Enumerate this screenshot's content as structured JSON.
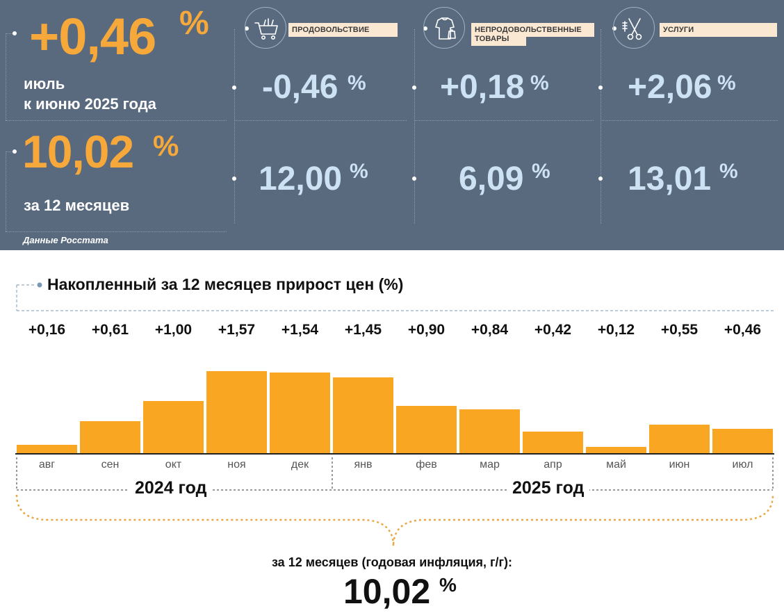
{
  "headline": {
    "monthly_value": "+0,46",
    "monthly_pct": "%",
    "monthly_line1": "июль",
    "monthly_line2": "к июню 2025 года",
    "annual_value": "10,02",
    "annual_pct": "%",
    "annual_caption": "за 12 месяцев",
    "source": "Данные Росстата"
  },
  "categories": [
    {
      "name": "ПРОДОВОЛЬСТВИЕ",
      "name_line2": "",
      "icon": "shopping-cart-icon",
      "monthly": "-0,46",
      "annual": "12,00",
      "pct": "%"
    },
    {
      "name": "НЕПРОДОВОЛЬСТВЕННЫЕ",
      "name_line2": "ТОВАРЫ",
      "icon": "clothes-icon",
      "monthly": "+0,18",
      "annual": "6,09",
      "pct": "%"
    },
    {
      "name": "УСЛУГИ",
      "name_line2": "",
      "icon": "scissors-icon",
      "monthly": "+2,06",
      "annual": "13,01",
      "pct": "%"
    }
  ],
  "chart_data": {
    "type": "bar",
    "title": "Накопленный за 12 месяцев прирост цен (%)",
    "categories": [
      "авг",
      "сен",
      "окт",
      "ноя",
      "дек",
      "янв",
      "фев",
      "мар",
      "апр",
      "май",
      "июн",
      "июл"
    ],
    "values": [
      0.16,
      0.61,
      1.0,
      1.57,
      1.54,
      1.45,
      0.9,
      0.84,
      0.42,
      0.12,
      0.55,
      0.46
    ],
    "value_labels": [
      "+0,16",
      "+0,61",
      "+1,00",
      "+1,57",
      "+1,54",
      "+1,45",
      "+0,90",
      "+0,84",
      "+0,42",
      "+0,12",
      "+0,55",
      "+0,46"
    ],
    "year_groups": [
      {
        "label": "2024 год",
        "months": [
          "авг",
          "сен",
          "окт",
          "ноя",
          "дек"
        ]
      },
      {
        "label": "2025 год",
        "months": [
          "янв",
          "фев",
          "мар",
          "апр",
          "май",
          "июн",
          "июл"
        ]
      }
    ],
    "ylim": [
      0,
      1.6
    ],
    "bar_color": "#f9a623",
    "grid": false
  },
  "summary": {
    "label": "за 12 месяцев (годовая инфляция, г/г):",
    "value": "10,02",
    "pct": "%"
  },
  "colors": {
    "panel_bg": "#596a7f",
    "accent_orange": "#f6a83a",
    "light_blue": "#cde3f3",
    "bar": "#f9a623"
  }
}
